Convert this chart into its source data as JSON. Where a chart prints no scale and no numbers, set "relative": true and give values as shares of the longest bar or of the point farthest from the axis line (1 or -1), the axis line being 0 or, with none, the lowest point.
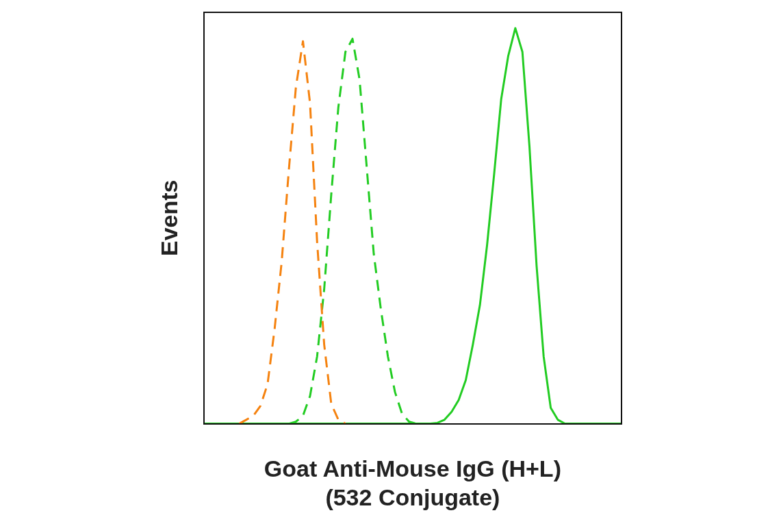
{
  "chart_data": {
    "type": "line",
    "relative": true,
    "ylabel": "Events",
    "xlabel": "Goat Anti-Mouse IgG (H+L) (532 Conjugate)",
    "legend": false,
    "grid": false,
    "marker": "none",
    "categories": [
      null,
      null,
      null,
      null,
      null,
      null,
      null,
      null,
      null,
      null,
      null,
      null,
      null,
      null,
      null,
      null,
      null,
      null,
      null,
      null,
      null,
      null,
      null,
      null,
      null,
      null,
      null,
      null,
      null,
      null,
      null,
      null,
      null,
      null,
      null,
      null,
      null,
      null,
      null,
      null,
      null,
      null,
      null,
      null,
      null,
      null,
      null,
      null,
      null,
      null,
      null,
      null,
      null,
      null,
      null,
      null,
      null,
      null,
      null,
      null
    ],
    "series": [
      {
        "color": "#f5820f",
        "line_style": "dashed",
        "values": [
          null,
          null,
          null,
          null,
          null,
          0,
          0.01,
          0.02,
          0.045,
          0.1,
          0.24,
          0.41,
          0.64,
          0.85,
          0.967,
          0.81,
          0.46,
          0.2,
          0.05,
          0.01,
          0,
          null,
          null,
          null,
          null,
          null,
          null,
          null,
          null,
          null,
          null,
          null,
          null,
          null,
          null,
          null,
          null,
          null,
          null,
          null,
          null,
          null,
          null,
          null,
          null,
          null,
          null,
          null,
          null,
          null,
          null,
          null,
          null,
          null,
          null,
          null,
          null,
          null,
          null,
          null
        ]
      },
      {
        "color": "#22cc22",
        "line_style": "dashed",
        "values": [
          null,
          null,
          null,
          null,
          null,
          null,
          null,
          null,
          null,
          null,
          null,
          null,
          0,
          0.005,
          0.02,
          0.07,
          0.17,
          0.34,
          0.58,
          0.8,
          0.94,
          0.973,
          0.87,
          0.65,
          0.43,
          0.29,
          0.17,
          0.08,
          0.025,
          0.005,
          0,
          null,
          null,
          null,
          null,
          null,
          null,
          null,
          null,
          null,
          null,
          null,
          null,
          null,
          null,
          null,
          null,
          null,
          null,
          null,
          null,
          null,
          null,
          null,
          null,
          null,
          null,
          null,
          null,
          null
        ]
      },
      {
        "color": "#22cc22",
        "line_style": "solid",
        "values": [
          0,
          0,
          0,
          0,
          0,
          0,
          0,
          0,
          0,
          0,
          0,
          0,
          0,
          0,
          0,
          0,
          0,
          0,
          0,
          0,
          0,
          0,
          0,
          0,
          0,
          0,
          0,
          0,
          0,
          0,
          0,
          0,
          0,
          0.002,
          0.01,
          0.03,
          0.06,
          0.11,
          0.2,
          0.3,
          0.45,
          0.63,
          0.82,
          0.93,
          1,
          0.94,
          0.7,
          0.4,
          0.17,
          0.04,
          0.01,
          0,
          0,
          0,
          0,
          0,
          0,
          0,
          0,
          0
        ]
      }
    ]
  }
}
